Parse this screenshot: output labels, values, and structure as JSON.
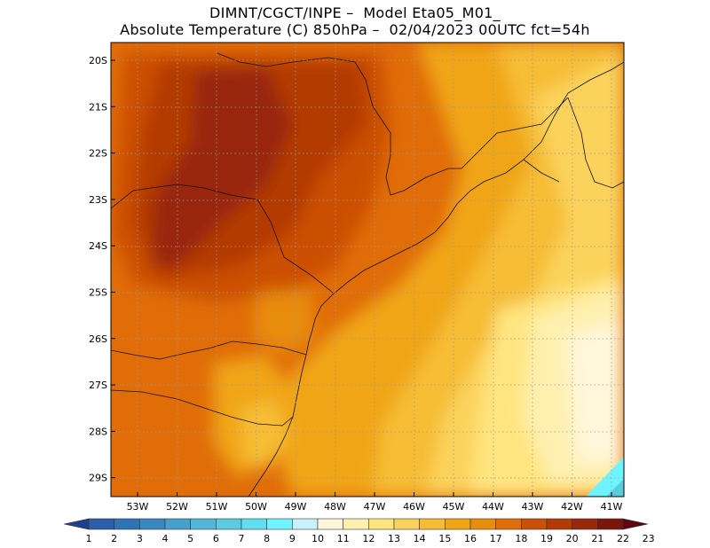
{
  "header": {
    "line1": "DIMNT/CGCT/INPE –  Model Eta05_M01_",
    "line2": "Absolute Temperature (C) 850hPa –  02/04/2023 00UTC fct=54h"
  },
  "map": {
    "lat_labels": [
      "20S",
      "21S",
      "22S",
      "23S",
      "24S",
      "25S",
      "26S",
      "27S",
      "28S",
      "29S"
    ],
    "lon_labels": [
      "53W",
      "52W",
      "51W",
      "50W",
      "49W",
      "48W",
      "47W",
      "46W",
      "45W",
      "44W",
      "43W",
      "42W",
      "41W"
    ],
    "lat_range": [
      -29.4,
      -19.8
    ],
    "lon_range": [
      -53.6,
      -40.6
    ]
  },
  "colorbar": {
    "labels": [
      "1",
      "2",
      "3",
      "4",
      "5",
      "6",
      "7",
      "8",
      "9",
      "10",
      "11",
      "12",
      "13",
      "14",
      "15",
      "16",
      "17",
      "18",
      "19",
      "20",
      "21",
      "22",
      "23"
    ],
    "colors": [
      "#1f3f8f",
      "#2b5ea8",
      "#2e73b5",
      "#3a88c2",
      "#46a0cf",
      "#52b6d6",
      "#5ccbe0",
      "#60dff0",
      "#6ef4ff",
      "#c8f2fb",
      "#fff7dc",
      "#fff0b0",
      "#ffe580",
      "#fbd35c",
      "#f6bd34",
      "#f0a514",
      "#e88c0c",
      "#e06d08",
      "#cc4f06",
      "#b33a06",
      "#98280a",
      "#7a160c",
      "#5e0612"
    ]
  }
}
